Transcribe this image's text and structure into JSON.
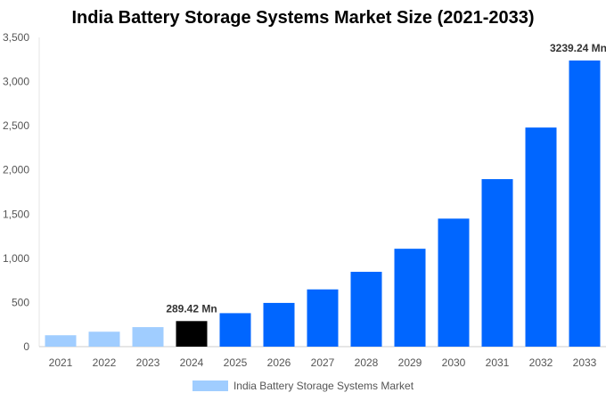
{
  "chart_data": {
    "type": "bar",
    "title": "India Battery Storage Systems Market Size (2021-2033)",
    "categories": [
      "2021",
      "2022",
      "2023",
      "2024",
      "2025",
      "2026",
      "2027",
      "2028",
      "2029",
      "2030",
      "2031",
      "2032",
      "2033"
    ],
    "series": [
      {
        "name": "India Battery Storage Systems Market",
        "values": [
          129,
          169,
          221,
          289.42,
          379,
          495,
          648,
          847,
          1108,
          1449,
          1896,
          2480,
          3239.24
        ]
      }
    ],
    "bar_colors": [
      "#a0cdff",
      "#a0cdff",
      "#a0cdff",
      "#000000",
      "#0066ff",
      "#0066ff",
      "#0066ff",
      "#0066ff",
      "#0066ff",
      "#0066ff",
      "#0066ff",
      "#0066ff",
      "#0066ff"
    ],
    "data_labels": [
      {
        "index": 3,
        "text": "289.42 Mn"
      },
      {
        "index": 12,
        "text": "3239.24 Mn"
      }
    ],
    "ylim": [
      0,
      3500
    ],
    "yticks": [
      0,
      500,
      1000,
      1500,
      2000,
      2500,
      3000,
      3500
    ],
    "ytick_labels": [
      "0",
      "500",
      "1,000",
      "1,500",
      "2,000",
      "2,500",
      "3,000",
      "3,500"
    ],
    "xlabel": "",
    "ylabel": "",
    "grid": false,
    "legend_position": "bottom",
    "legend_color": "#a0cdff"
  }
}
